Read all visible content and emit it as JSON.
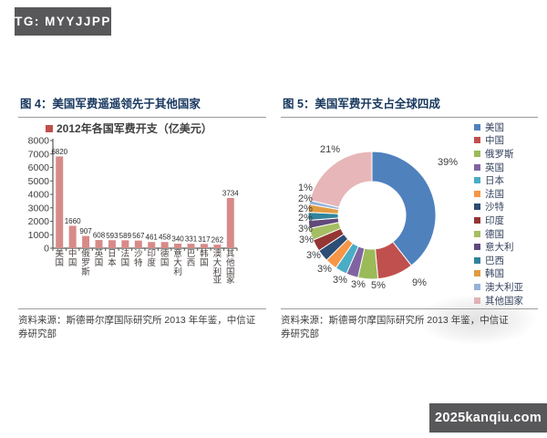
{
  "badges": {
    "tg": "TG: MYYJJPP",
    "site": "2025kanqiu.com"
  },
  "fig4": {
    "title": "图 4：美国军费遥遥领先于其他国家",
    "legend_label": "2012年各国军费开支（亿美元）",
    "source_line1": "资料来源：斯德哥尔摩国际研究所 2013 年年鉴，中信证",
    "source_line2": "券研究部"
  },
  "fig5": {
    "title": "图 5：美国军费开支占全球四成",
    "source_line1": "资料来源：斯德哥尔摩国际研究所 2013 年鉴，中信证",
    "source_line2": "券研究部"
  },
  "chart_data": [
    {
      "type": "bar",
      "title": "美国军费遥遥领先于其他国家",
      "legend": "2012年各国军费开支（亿美元）",
      "categories": [
        "美国",
        "中国",
        "俄罗斯",
        "英国",
        "日本",
        "法国",
        "沙特",
        "印度",
        "德国",
        "意大利",
        "巴西",
        "韩国",
        "澳大利亚",
        "其他国家"
      ],
      "values": [
        6820,
        1660,
        907,
        608,
        593,
        589,
        567,
        461,
        458,
        340,
        331,
        317,
        262,
        3734
      ],
      "xlabel": "",
      "ylabel": "",
      "ylim": [
        0,
        8000
      ],
      "ytick_step": 1000,
      "grid": false,
      "bar_color": "#d78b88",
      "legend_marker_color": "#c0504d",
      "axis_color": "#595959"
    },
    {
      "type": "pie",
      "subtype": "donut",
      "title": "美国军费开支占全球四成",
      "categories": [
        "美国",
        "中国",
        "俄罗斯",
        "英国",
        "日本",
        "法国",
        "沙特",
        "印度",
        "德国",
        "意大利",
        "巴西",
        "韩国",
        "澳大利亚",
        "其他国家"
      ],
      "values": [
        39,
        9,
        5,
        3,
        3,
        3,
        3,
        3,
        3,
        2,
        2,
        2,
        1,
        21
      ],
      "unit": "%",
      "legend_position": "right",
      "colors": [
        "#4f81bd",
        "#c0504d",
        "#9bbb59",
        "#8064a2",
        "#4bacc6",
        "#f79646",
        "#2c4d75",
        "#943634",
        "#a6be63",
        "#604a7b",
        "#31849b",
        "#e19b42",
        "#95b3d7",
        "#e7b6b8"
      ]
    }
  ]
}
